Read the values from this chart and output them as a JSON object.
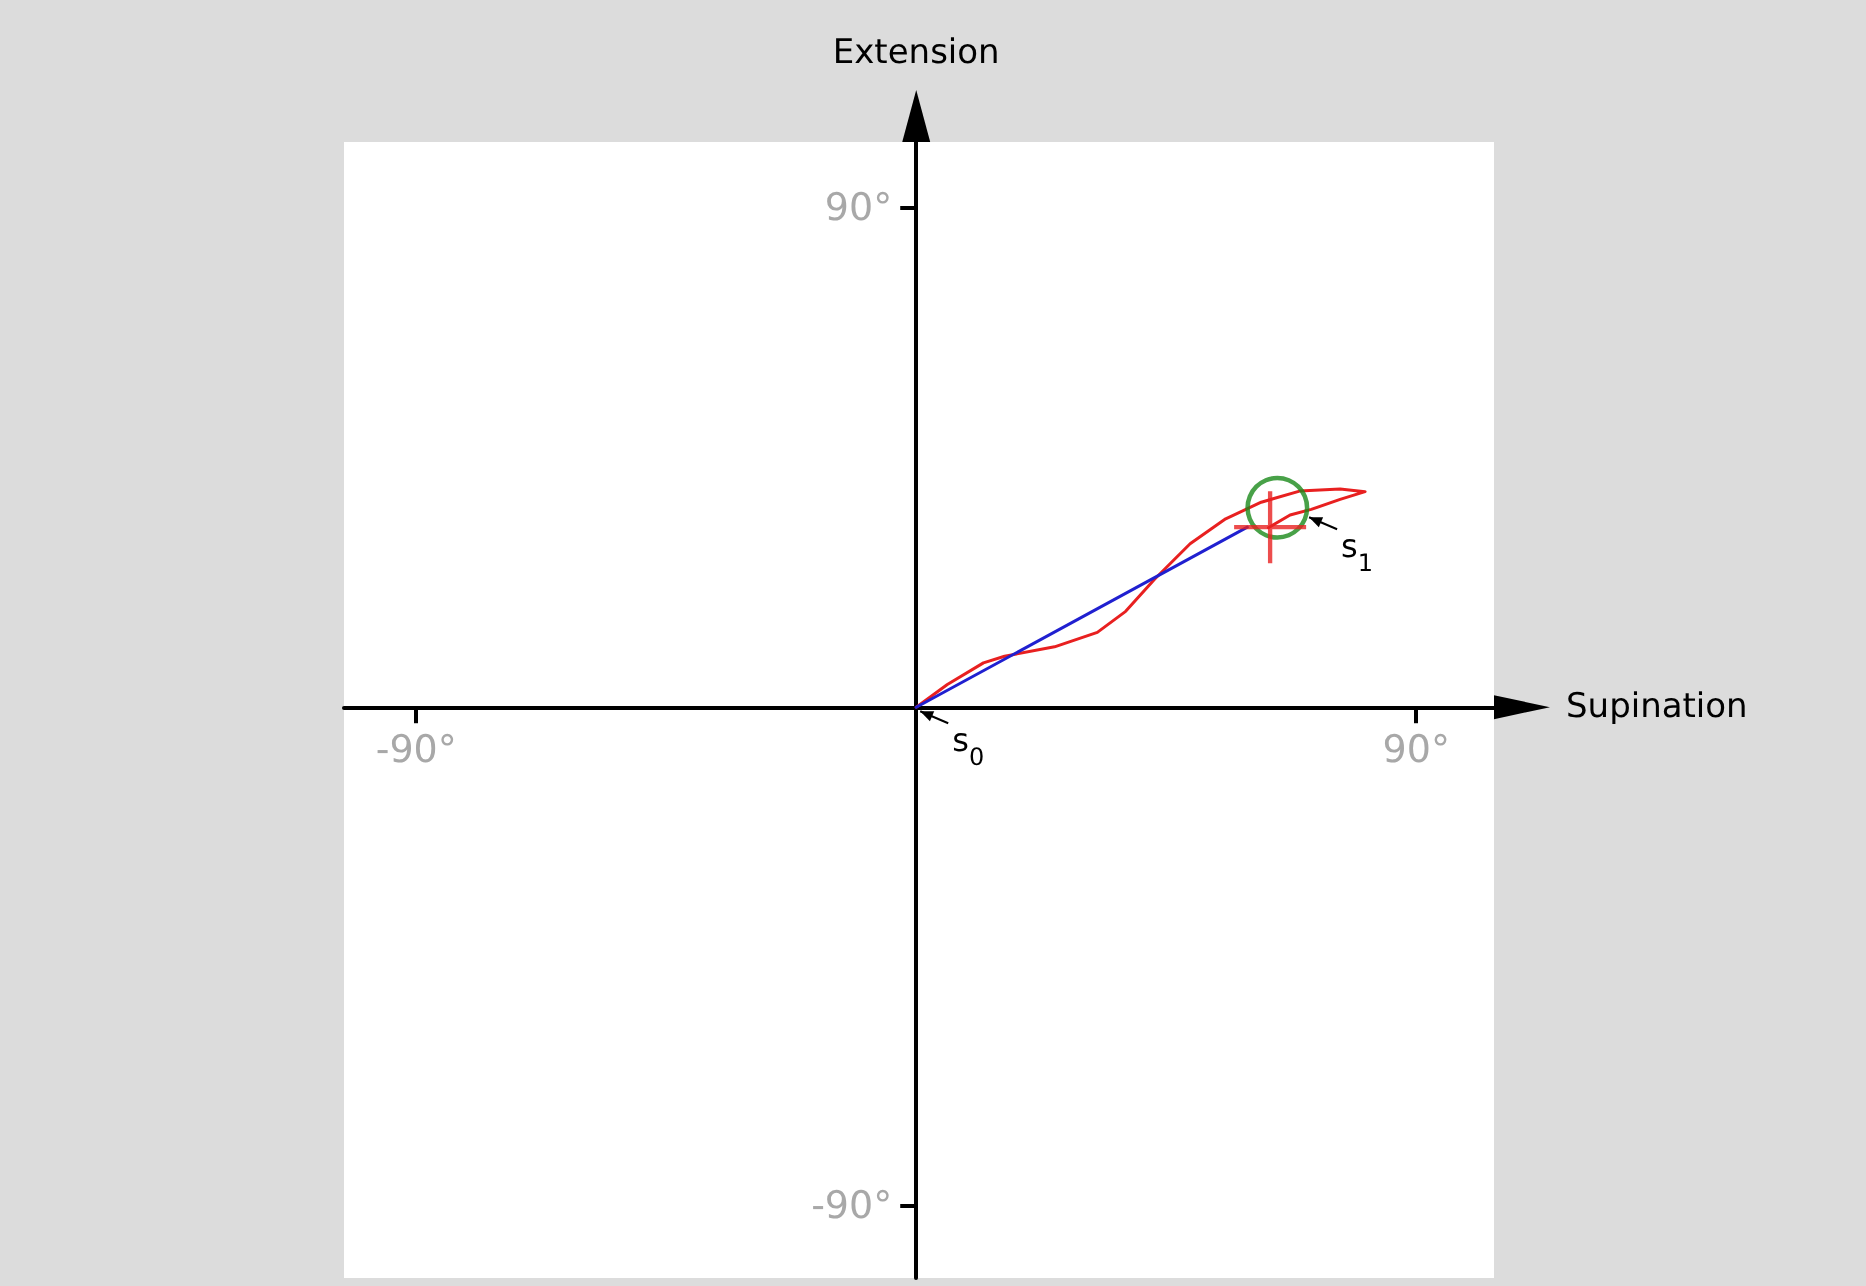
{
  "chart_data": {
    "type": "line",
    "xlabel": "Supination",
    "ylabel": "Extension",
    "xlim": [
      -103,
      104
    ],
    "ylim": [
      -103,
      102
    ],
    "xticks": [
      {
        "value": -90,
        "label": "-90°"
      },
      {
        "value": 90,
        "label": "90°"
      }
    ],
    "yticks": [
      {
        "value": -90,
        "label": "-90°"
      },
      {
        "value": 90,
        "label": "90°"
      }
    ],
    "grid": false,
    "series": [
      {
        "color": "#e82020",
        "marker": "none",
        "x": [
          0,
          5.6,
          12.1,
          15.9,
          24.9,
          32.6,
          37.7,
          42.9,
          49.3,
          55.7,
          62.1,
          69.0,
          76.3,
          80.8,
          76.3,
          71.1,
          67.3,
          63.4
        ],
        "values": [
          0,
          4.1,
          8.0,
          9.2,
          10.9,
          13.5,
          17.3,
          23.1,
          29.5,
          34.0,
          37.0,
          39.0,
          39.4,
          38.9,
          37.5,
          35.7,
          34.7,
          32.4
        ]
      },
      {
        "color": "#2020d0",
        "marker": "none",
        "x": [
          0,
          59.6
        ],
        "values": [
          0,
          32.5
        ]
      },
      {
        "type": "scatter",
        "color": "#1a8a1a",
        "marker": "circle",
        "x": [
          65
        ],
        "values": [
          36
        ]
      },
      {
        "type": "scatter",
        "color": "#e82020",
        "marker": "cross",
        "x": [
          63.7
        ],
        "values": [
          32.5
        ]
      }
    ],
    "annotations": [
      {
        "text": "s$_{0}$",
        "x": 0,
        "y": 0
      },
      {
        "text": "s$_{1}$",
        "x": 70,
        "y": 35
      }
    ]
  }
}
